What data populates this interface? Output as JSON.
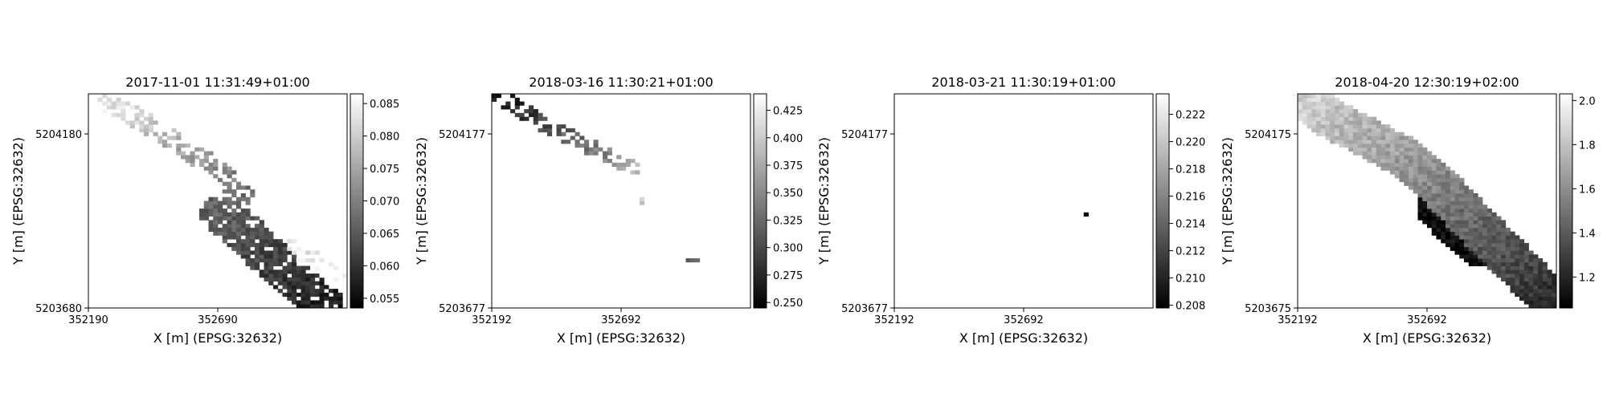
{
  "chart_data": [
    {
      "type": "heatmap",
      "title": "2017-11-01 11:31:49+01:00",
      "xlabel": "X [m] (EPSG:32632)",
      "ylabel": "Y [m] (EPSG:32632)",
      "x_ticks": [
        "352190",
        "352690"
      ],
      "y_ticks": [
        "5204180",
        "5203680"
      ],
      "colorbar": {
        "range": [
          0.0535,
          0.0865
        ],
        "ticks": [
          "0.085",
          "0.080",
          "0.075",
          "0.070",
          "0.065",
          "0.060",
          "0.055"
        ]
      },
      "colormap": "gray",
      "shapes": [
        {
          "pts": [
            [
              0.06,
              0.96
            ],
            [
              0.2,
              0.88
            ],
            [
              0.34,
              0.78
            ],
            [
              0.48,
              0.66
            ],
            [
              0.6,
              0.53
            ]
          ],
          "v0": 0.084,
          "v1": 0.068,
          "r": 0.045,
          "density": 0.55
        },
        {
          "pts": [
            [
              0.52,
              0.44
            ],
            [
              0.63,
              0.32
            ],
            [
              0.73,
              0.2
            ],
            [
              0.84,
              0.09
            ],
            [
              0.9,
              0.03
            ]
          ],
          "v0": 0.066,
          "v1": 0.057,
          "r": 0.085,
          "density": 0.85
        },
        {
          "pts": [
            [
              0.76,
              0.31
            ],
            [
              0.86,
              0.23
            ],
            [
              0.96,
              0.14
            ]
          ],
          "v0": 0.081,
          "v1": 0.086,
          "r": 0.04,
          "density": 0.3
        }
      ]
    },
    {
      "type": "heatmap",
      "title": "2018-03-16 11:30:21+01:00",
      "xlabel": "X [m] (EPSG:32632)",
      "ylabel": "Y [m] (EPSG:32632)",
      "x_ticks": [
        "352192",
        "352692"
      ],
      "y_ticks": [
        "5204177",
        "5203677"
      ],
      "colorbar": {
        "range": [
          0.245,
          0.44
        ],
        "ticks": [
          "0.425",
          "0.400",
          "0.375",
          "0.350",
          "0.325",
          "0.300",
          "0.275",
          "0.250"
        ]
      },
      "colormap": "gray",
      "shapes": [
        {
          "pts": [
            [
              0.04,
              0.98
            ],
            [
              0.12,
              0.92
            ],
            [
              0.2,
              0.86
            ],
            [
              0.3,
              0.8
            ],
            [
              0.4,
              0.74
            ],
            [
              0.5,
              0.68
            ],
            [
              0.54,
              0.65
            ]
          ],
          "v0": 0.26,
          "v1": 0.38,
          "r": 0.035,
          "density": 0.55
        },
        {
          "pts": [
            [
              0.58,
              0.5
            ]
          ],
          "v0": 0.4,
          "v1": 0.4,
          "r": 0.015,
          "density": 1
        },
        {
          "pts": [
            [
              0.7,
              0.34
            ]
          ],
          "v0": 0.26,
          "v1": 0.26,
          "r": 0.008,
          "density": 1
        },
        {
          "pts": [
            [
              0.76,
              0.23
            ],
            [
              0.8,
              0.23
            ]
          ],
          "v0": 0.33,
          "v1": 0.33,
          "r": 0.01,
          "density": 1
        }
      ]
    },
    {
      "type": "heatmap",
      "title": "2018-03-21 11:30:19+01:00",
      "xlabel": "X [m] (EPSG:32632)",
      "ylabel": "Y [m] (EPSG:32632)",
      "x_ticks": [
        "352192",
        "352692"
      ],
      "y_ticks": [
        "5204177",
        "5203677"
      ],
      "colorbar": {
        "range": [
          0.2078,
          0.2235
        ],
        "ticks": [
          "0.222",
          "0.220",
          "0.218",
          "0.216",
          "0.214",
          "0.212",
          "0.210",
          "0.208"
        ]
      },
      "colormap": "gray",
      "shapes": [
        {
          "pts": [
            [
              0.74,
              0.44
            ]
          ],
          "v0": 0.208,
          "v1": 0.208,
          "r": 0.01,
          "density": 1
        }
      ]
    },
    {
      "type": "heatmap",
      "title": "2018-04-20 12:30:19+02:00",
      "xlabel": "X [m] (EPSG:32632)",
      "ylabel": "Y [m] (EPSG:32632)",
      "x_ticks": [
        "352192",
        "352692"
      ],
      "y_ticks": [
        "5204175",
        "5203675"
      ],
      "colorbar": {
        "range": [
          1.06,
          2.03
        ],
        "ticks": [
          "2.0",
          "1.8",
          "1.6",
          "1.4",
          "1.2"
        ]
      },
      "colormap": "gray",
      "shapes": [
        {
          "pts": [
            [
              0.05,
              0.95
            ],
            [
              0.15,
              0.87
            ],
            [
              0.28,
              0.79
            ],
            [
              0.42,
              0.7
            ],
            [
              0.52,
              0.6
            ],
            [
              0.6,
              0.5
            ],
            [
              0.68,
              0.4
            ],
            [
              0.78,
              0.28
            ],
            [
              0.88,
              0.16
            ],
            [
              0.94,
              0.08
            ]
          ],
          "v0": 1.85,
          "v1": 1.25,
          "r": 0.09,
          "density": 1
        },
        {
          "pts": [
            [
              0.56,
              0.46
            ],
            [
              0.7,
              0.3
            ]
          ],
          "v0": 1.1,
          "v1": 1.1,
          "r": 0.1,
          "density": 1
        }
      ]
    }
  ]
}
